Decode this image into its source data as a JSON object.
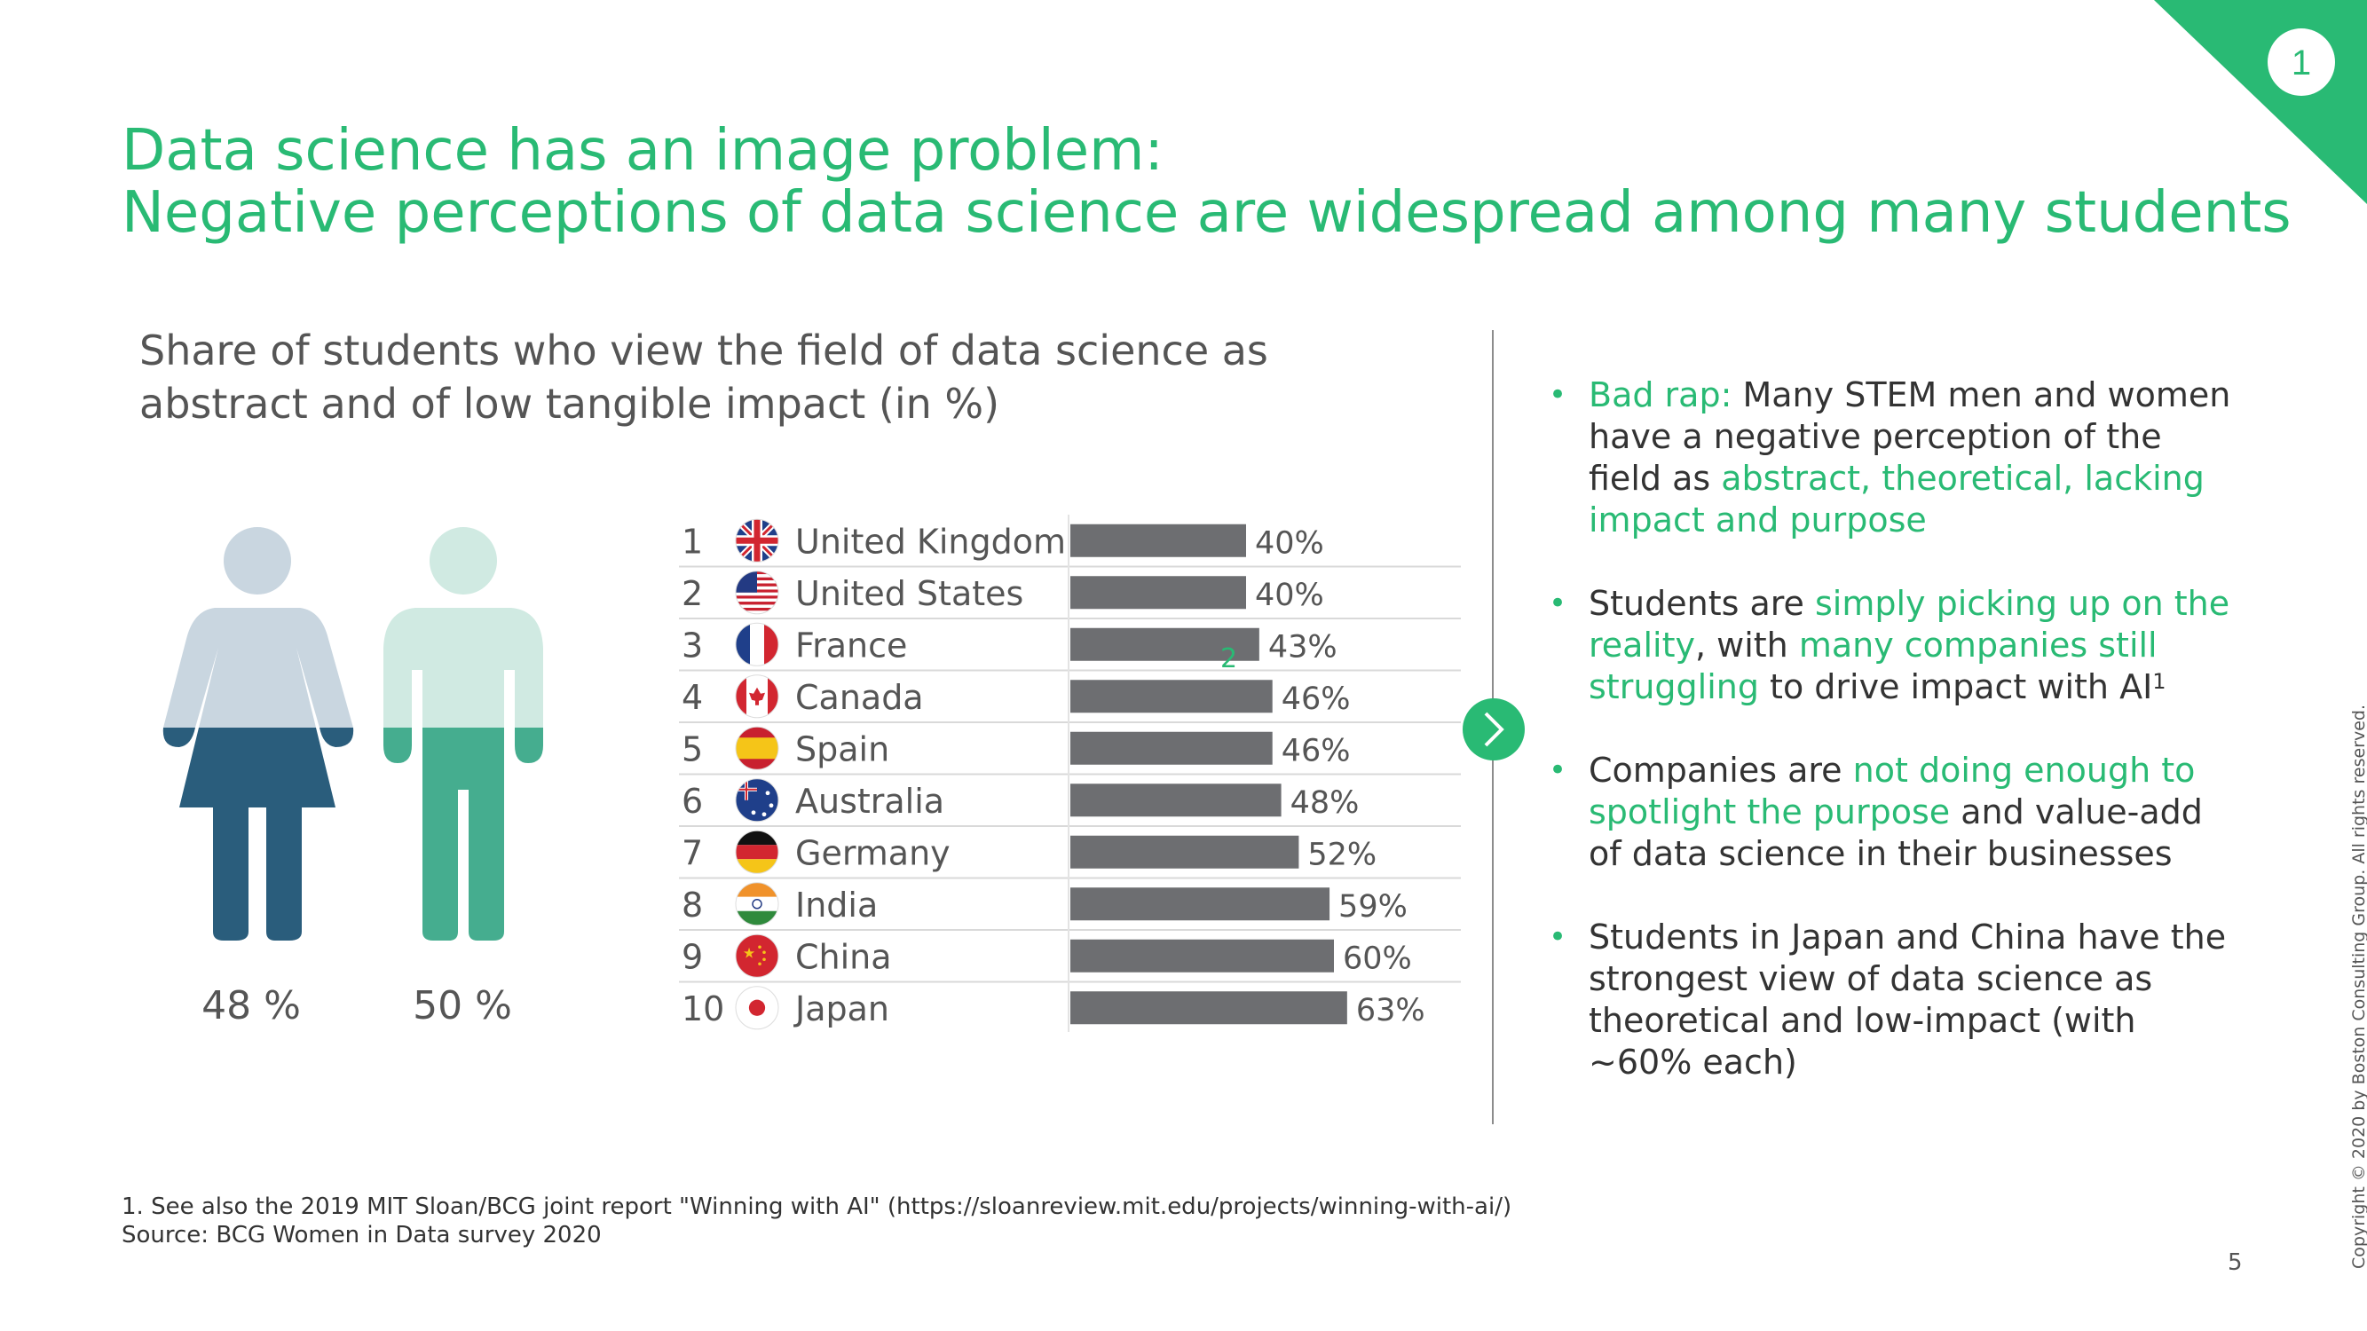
{
  "header": {
    "title_line1": "Data science has an image problem:",
    "title_line2": "Negative perceptions of data science are widespread among many students",
    "section_badge": "1"
  },
  "colors": {
    "accent": "#29ba74",
    "bar": "#6d6e71",
    "women_top": "#c9d6e0",
    "women_bottom": "#2a5d7c",
    "men_top": "#d0eae2",
    "men_bottom": "#45ad8f"
  },
  "gender_panel": {
    "women": {
      "label": "48 %",
      "value": 48,
      "icon": "woman-icon"
    },
    "men": {
      "label": "50 %",
      "value": 50,
      "icon": "man-icon"
    }
  },
  "chart_data": {
    "type": "bar",
    "title": "Share of students who view the field of data science as abstract and of low tangible impact (in %)",
    "categories": [
      "United Kingdom",
      "United States",
      "France",
      "Canada",
      "Spain",
      "Australia",
      "Germany",
      "India",
      "China",
      "Japan"
    ],
    "ranks": [
      "1",
      "2",
      "3",
      "4",
      "5",
      "6",
      "7",
      "8",
      "9",
      "10"
    ],
    "values": [
      40,
      40,
      43,
      46,
      46,
      48,
      52,
      59,
      60,
      63
    ],
    "value_labels": [
      "40%",
      "40%",
      "43%",
      "46%",
      "46%",
      "48%",
      "52%",
      "59%",
      "60%",
      "63%"
    ],
    "flag_icons": [
      "uk-flag-icon",
      "us-flag-icon",
      "france-flag-icon",
      "canada-flag-icon",
      "spain-flag-icon",
      "australia-flag-icon",
      "germany-flag-icon",
      "india-flag-icon",
      "china-flag-icon",
      "japan-flag-icon"
    ],
    "orientation": "horizontal",
    "xlim": [
      0,
      70
    ],
    "grid": false,
    "stray_mark": "2"
  },
  "bullets": [
    {
      "parts": [
        {
          "text": "Bad rap:",
          "hl": true
        },
        {
          "text": " Many STEM men and women have a negative perception of the field as ",
          "hl": false
        },
        {
          "text": "abstract, theoretical, lacking impact and purpose",
          "hl": true
        }
      ]
    },
    {
      "parts": [
        {
          "text": "Students are ",
          "hl": false
        },
        {
          "text": "simply picking up on the reality",
          "hl": true
        },
        {
          "text": ", with ",
          "hl": false
        },
        {
          "text": "many companies still struggling",
          "hl": true
        },
        {
          "text": " to drive impact with AI",
          "hl": false
        }
      ],
      "sup": "1"
    },
    {
      "parts": [
        {
          "text": "Companies are ",
          "hl": false
        },
        {
          "text": "not doing enough to spotlight the purpose",
          "hl": true
        },
        {
          "text": " and value-add of data science in their businesses",
          "hl": false
        }
      ]
    },
    {
      "parts": [
        {
          "text": "Students in Japan and China have the strongest view of data science as theoretical and low-impact (with ~60% each)",
          "hl": false
        }
      ]
    }
  ],
  "footer": {
    "footnote": "1. See also the 2019 MIT Sloan/BCG joint report \"Winning with AI\" (https://sloanreview.mit.edu/projects/winning-with-ai/)",
    "source": "Source: BCG Women in Data survey 2020",
    "page_number": "5",
    "copyright": "Copyright © 2020 by Boston Consulting Group. All rights reserved."
  }
}
